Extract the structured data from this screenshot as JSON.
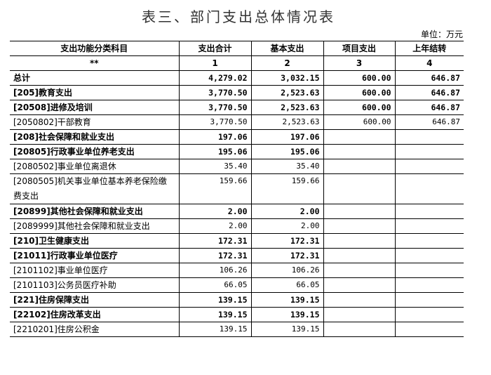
{
  "title": "表三、部门支出总体情况表",
  "unit": "单位：万元",
  "table": {
    "headers": [
      "支出功能分类科目",
      "支出合计",
      "基本支出",
      "项目支出",
      "上年结转"
    ],
    "index_row": [
      "**",
      "1",
      "2",
      "3",
      "4"
    ],
    "rows": [
      {
        "name": "总计",
        "total": "4,279.02",
        "basic": "3,032.15",
        "project": "600.00",
        "carryover": "646.87",
        "bold": true
      },
      {
        "name": "[205]教育支出",
        "total": "3,770.50",
        "basic": "2,523.63",
        "project": "600.00",
        "carryover": "646.87",
        "bold": true
      },
      {
        "name": "[20508]进修及培训",
        "total": "3,770.50",
        "basic": "2,523.63",
        "project": "600.00",
        "carryover": "646.87",
        "bold": true
      },
      {
        "name": "[2050802]干部教育",
        "total": "3,770.50",
        "basic": "2,523.63",
        "project": "600.00",
        "carryover": "646.87",
        "bold": false
      },
      {
        "name": "[208]社会保障和就业支出",
        "total": "197.06",
        "basic": "197.06",
        "project": "",
        "carryover": "",
        "bold": true
      },
      {
        "name": "[20805]行政事业单位养老支出",
        "total": "195.06",
        "basic": "195.06",
        "project": "",
        "carryover": "",
        "bold": true
      },
      {
        "name": "[2080502]事业单位离退休",
        "total": "35.40",
        "basic": "35.40",
        "project": "",
        "carryover": "",
        "bold": false
      },
      {
        "name": "[2080505]机关事业单位基本养老保险缴费支出",
        "total": "159.66",
        "basic": "159.66",
        "project": "",
        "carryover": "",
        "bold": false,
        "wrap": true
      },
      {
        "name": "[20899]其他社会保障和就业支出",
        "total": "2.00",
        "basic": "2.00",
        "project": "",
        "carryover": "",
        "bold": true
      },
      {
        "name": "[2089999]其他社会保障和就业支出",
        "total": "2.00",
        "basic": "2.00",
        "project": "",
        "carryover": "",
        "bold": false
      },
      {
        "name": "[210]卫生健康支出",
        "total": "172.31",
        "basic": "172.31",
        "project": "",
        "carryover": "",
        "bold": true
      },
      {
        "name": "[21011]行政事业单位医疗",
        "total": "172.31",
        "basic": "172.31",
        "project": "",
        "carryover": "",
        "bold": true
      },
      {
        "name": "[2101102]事业单位医疗",
        "total": "106.26",
        "basic": "106.26",
        "project": "",
        "carryover": "",
        "bold": false
      },
      {
        "name": "[2101103]公务员医疗补助",
        "total": "66.05",
        "basic": "66.05",
        "project": "",
        "carryover": "",
        "bold": false
      },
      {
        "name": "[221]住房保障支出",
        "total": "139.15",
        "basic": "139.15",
        "project": "",
        "carryover": "",
        "bold": true
      },
      {
        "name": "[22102]住房改革支出",
        "total": "139.15",
        "basic": "139.15",
        "project": "",
        "carryover": "",
        "bold": true
      },
      {
        "name": "[2210201]住房公积金",
        "total": "139.15",
        "basic": "139.15",
        "project": "",
        "carryover": "",
        "bold": false
      }
    ]
  }
}
